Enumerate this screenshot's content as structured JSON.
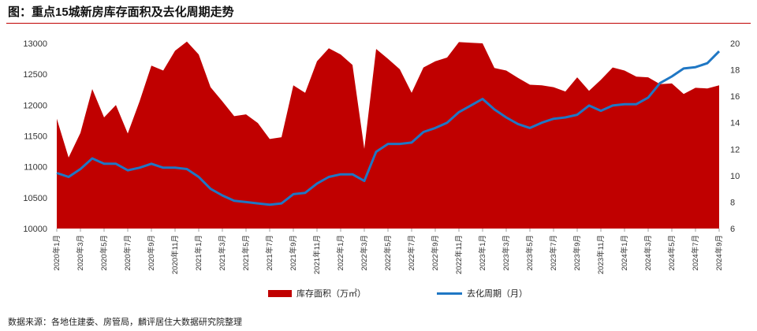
{
  "header": {
    "title": "图：重点15城新房库存面积及去化周期走势"
  },
  "footer": {
    "source": "数据来源：各地住建委、房管局，麟评居住大数据研究院整理"
  },
  "colors": {
    "inventory": "#c00000",
    "cycle": "#1f77c4",
    "title_rule": "#c00000"
  },
  "chart_data": {
    "type": "area",
    "x_tick_labels": [
      "2020年1月",
      "2020年3月",
      "2020年5月",
      "2020年7月",
      "2020年9月",
      "2020年11月",
      "2021年1月",
      "2021年3月",
      "2021年5月",
      "2021年7月",
      "2021年9月",
      "2021年11月",
      "2022年1月",
      "2022年3月",
      "2022年5月",
      "2022年7月",
      "2022年9月",
      "2022年11月",
      "2023年1月",
      "2023年3月",
      "2023年5月",
      "2023年7月",
      "2023年9月",
      "2023年11月",
      "2024年1月",
      "2024年3月",
      "2024年5月",
      "2024年7月",
      "2024年9月"
    ],
    "left_axis": {
      "min": 10000,
      "max": 13000,
      "ticks": [
        10000,
        10500,
        11000,
        11500,
        12000,
        12500,
        13000
      ]
    },
    "right_axis": {
      "min": 6,
      "max": 20,
      "ticks": [
        6,
        8,
        10,
        12,
        14,
        16,
        18,
        20
      ]
    },
    "series": [
      {
        "name": "库存面积（万㎡）",
        "kind": "area",
        "axis": "left",
        "values": [
          11780,
          11150,
          11550,
          12260,
          11800,
          12000,
          11540,
          12060,
          12640,
          12560,
          12880,
          13030,
          12820,
          12290,
          12060,
          11820,
          11850,
          11710,
          11450,
          11480,
          12320,
          12200,
          12710,
          12920,
          12820,
          12650,
          11290,
          12910,
          12750,
          12580,
          12200,
          12610,
          12710,
          12770,
          13020,
          13010,
          13000,
          12600,
          12560,
          12440,
          12330,
          12320,
          12290,
          12220,
          12450,
          12230,
          12410,
          12610,
          12560,
          12460,
          12450,
          12340,
          12350,
          12180,
          12280,
          12270,
          12320
        ]
      },
      {
        "name": "去化周期（月）",
        "kind": "line",
        "axis": "right",
        "values": [
          10.2,
          9.9,
          10.5,
          11.3,
          10.9,
          10.9,
          10.4,
          10.6,
          10.9,
          10.6,
          10.6,
          10.5,
          9.9,
          9.0,
          8.5,
          8.1,
          8.0,
          7.9,
          7.8,
          7.9,
          8.6,
          8.7,
          9.4,
          9.9,
          10.1,
          10.1,
          9.6,
          11.8,
          12.4,
          12.4,
          12.5,
          13.3,
          13.6,
          14.0,
          14.8,
          15.3,
          15.8,
          15.0,
          14.4,
          13.9,
          13.6,
          14.0,
          14.3,
          14.4,
          14.6,
          15.3,
          14.9,
          15.3,
          15.4,
          15.4,
          15.9,
          17.0,
          17.5,
          18.1,
          18.2,
          18.5,
          19.4
        ]
      }
    ],
    "legend_position": "bottom",
    "grid": false
  }
}
